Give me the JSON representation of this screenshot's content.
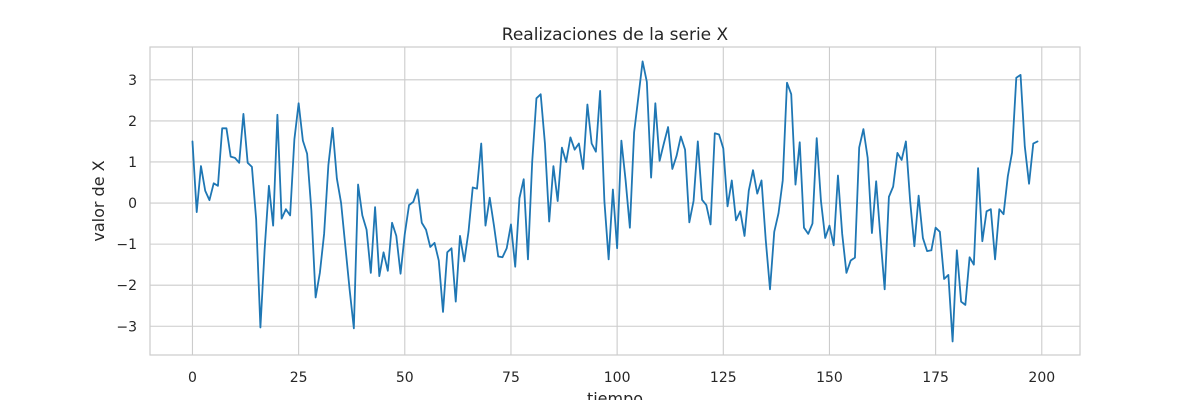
{
  "chart_data": {
    "type": "line",
    "title": "Realizaciones de la serie X",
    "xlabel": "tiempo",
    "ylabel": "valor de X",
    "xlim": [
      -10,
      209
    ],
    "ylim": [
      -3.7,
      3.8
    ],
    "grid": true,
    "x_ticks": [
      0,
      25,
      50,
      75,
      100,
      125,
      150,
      175,
      200
    ],
    "y_ticks": [
      -3,
      -2,
      -1,
      0,
      1,
      2,
      3
    ],
    "x_tick_labels": [
      "0",
      "25",
      "50",
      "75",
      "100",
      "125",
      "150",
      "175",
      "200"
    ],
    "y_tick_labels": [
      "−3",
      "−2",
      "−1",
      "0",
      "1",
      "2",
      "3"
    ],
    "colors": {
      "line": "#1f77b4",
      "grid": "#cccccc",
      "frame": "#cccccc",
      "text": "#262626"
    },
    "series": [
      {
        "values": [
          1.5,
          -0.22,
          0.9,
          0.3,
          0.07,
          0.48,
          0.42,
          1.82,
          1.82,
          1.13,
          1.1,
          0.98,
          2.17,
          0.98,
          0.88,
          -0.4,
          -3.03,
          -1.12,
          0.42,
          -0.55,
          2.15,
          -0.38,
          -0.15,
          -0.3,
          1.55,
          2.43,
          1.52,
          1.2,
          -0.18,
          -2.3,
          -1.7,
          -0.75,
          0.92,
          1.83,
          0.6,
          0.0,
          -1.05,
          -2.1,
          -3.05,
          0.45,
          -0.3,
          -0.65,
          -1.7,
          -0.1,
          -1.78,
          -1.2,
          -1.65,
          -0.48,
          -0.8,
          -1.72,
          -0.75,
          -0.05,
          0.03,
          0.33,
          -0.48,
          -0.65,
          -1.07,
          -0.97,
          -1.4,
          -2.65,
          -1.2,
          -1.1,
          -2.4,
          -0.8,
          -1.42,
          -0.7,
          0.38,
          0.35,
          1.45,
          -0.55,
          0.13,
          -0.55,
          -1.3,
          -1.32,
          -1.1,
          -0.52,
          -1.55,
          0.12,
          0.58,
          -1.37,
          1.0,
          2.55,
          2.65,
          1.45,
          -0.45,
          0.9,
          0.05,
          1.35,
          1.0,
          1.6,
          1.3,
          1.45,
          0.83,
          2.4,
          1.45,
          1.25,
          2.73,
          0.05,
          -1.37,
          0.33,
          -1.1,
          1.52,
          0.55,
          -0.6,
          1.72,
          2.58,
          3.45,
          2.95,
          0.62,
          2.43,
          1.03,
          1.45,
          1.85,
          0.83,
          1.15,
          1.62,
          1.3,
          -0.47,
          0.05,
          1.5,
          0.08,
          -0.05,
          -0.52,
          1.7,
          1.67,
          1.33,
          -0.08,
          0.55,
          -0.42,
          -0.2,
          -0.8,
          0.3,
          0.8,
          0.23,
          0.55,
          -0.9,
          -2.1,
          -0.7,
          -0.25,
          0.55,
          2.93,
          2.65,
          0.45,
          1.48,
          -0.6,
          -0.75,
          -0.5,
          1.58,
          0.05,
          -0.85,
          -0.55,
          -1.03,
          0.67,
          -0.75,
          -1.7,
          -1.4,
          -1.33,
          1.35,
          1.8,
          1.1,
          -0.73,
          0.53,
          -0.83,
          -2.1,
          0.15,
          0.4,
          1.22,
          1.05,
          1.5,
          0.05,
          -1.05,
          0.18,
          -0.85,
          -1.17,
          -1.15,
          -0.6,
          -0.7,
          -1.85,
          -1.75,
          -3.37,
          -1.15,
          -2.4,
          -2.48,
          -1.32,
          -1.5,
          0.85,
          -0.93,
          -0.2,
          -0.15,
          -1.37,
          -0.15,
          -0.27,
          0.65,
          1.23,
          3.05,
          3.12,
          1.38,
          0.47,
          1.45,
          1.5
        ]
      }
    ]
  }
}
